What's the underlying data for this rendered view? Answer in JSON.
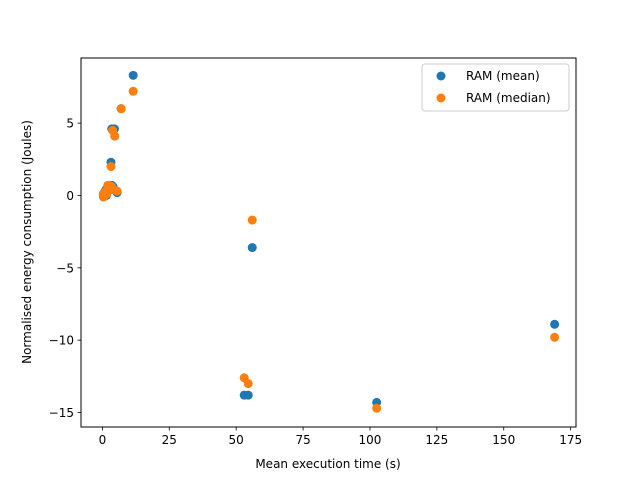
{
  "chart_data": {
    "type": "scatter",
    "title": "",
    "xlabel": "Mean execution time (s)",
    "ylabel": "Normalised energy consumption (Joules)",
    "xlim": [
      -8,
      177
    ],
    "ylim": [
      -16,
      9.5
    ],
    "xticks": [
      0,
      25,
      50,
      75,
      100,
      125,
      150,
      175
    ],
    "yticks": [
      -15,
      -10,
      -5,
      0,
      5
    ],
    "ytick_labels": [
      "−15",
      "−10",
      "−5",
      "0",
      "5"
    ],
    "grid": false,
    "legend_position": "top-right",
    "series": [
      {
        "name": "RAM (mean)",
        "color": "#1f77b4",
        "points": [
          [
            0.4,
            -0.1
          ],
          [
            0.6,
            0.1
          ],
          [
            0.8,
            0.2
          ],
          [
            1.0,
            0.3
          ],
          [
            1.3,
            0.4
          ],
          [
            1.5,
            0.0
          ],
          [
            2.0,
            0.6
          ],
          [
            2.5,
            0.7
          ],
          [
            3.0,
            0.5
          ],
          [
            3.5,
            0.7
          ],
          [
            4.0,
            0.6
          ],
          [
            5.5,
            0.2
          ],
          [
            3.2,
            2.3
          ],
          [
            3.5,
            4.6
          ],
          [
            4.5,
            4.6
          ],
          [
            7.0,
            6.0
          ],
          [
            11.5,
            8.3
          ],
          [
            56.0,
            -3.6
          ],
          [
            53.0,
            -13.8
          ],
          [
            54.5,
            -13.8
          ],
          [
            102.5,
            -14.3
          ],
          [
            169.0,
            -8.9
          ]
        ]
      },
      {
        "name": "RAM (median)",
        "color": "#ff7f0e",
        "points": [
          [
            0.3,
            0.1
          ],
          [
            0.5,
            -0.1
          ],
          [
            0.7,
            0.0
          ],
          [
            1.0,
            0.2
          ],
          [
            1.2,
            0.3
          ],
          [
            1.6,
            0.1
          ],
          [
            2.0,
            0.7
          ],
          [
            2.5,
            0.7
          ],
          [
            3.0,
            0.5
          ],
          [
            3.5,
            0.6
          ],
          [
            4.0,
            0.4
          ],
          [
            5.5,
            0.3
          ],
          [
            3.2,
            2.0
          ],
          [
            3.8,
            4.5
          ],
          [
            4.6,
            4.1
          ],
          [
            7.0,
            6.0
          ],
          [
            11.5,
            7.2
          ],
          [
            56.0,
            -1.7
          ],
          [
            53.0,
            -12.6
          ],
          [
            54.5,
            -13.0
          ],
          [
            102.5,
            -14.7
          ],
          [
            169.0,
            -9.8
          ]
        ]
      }
    ]
  }
}
